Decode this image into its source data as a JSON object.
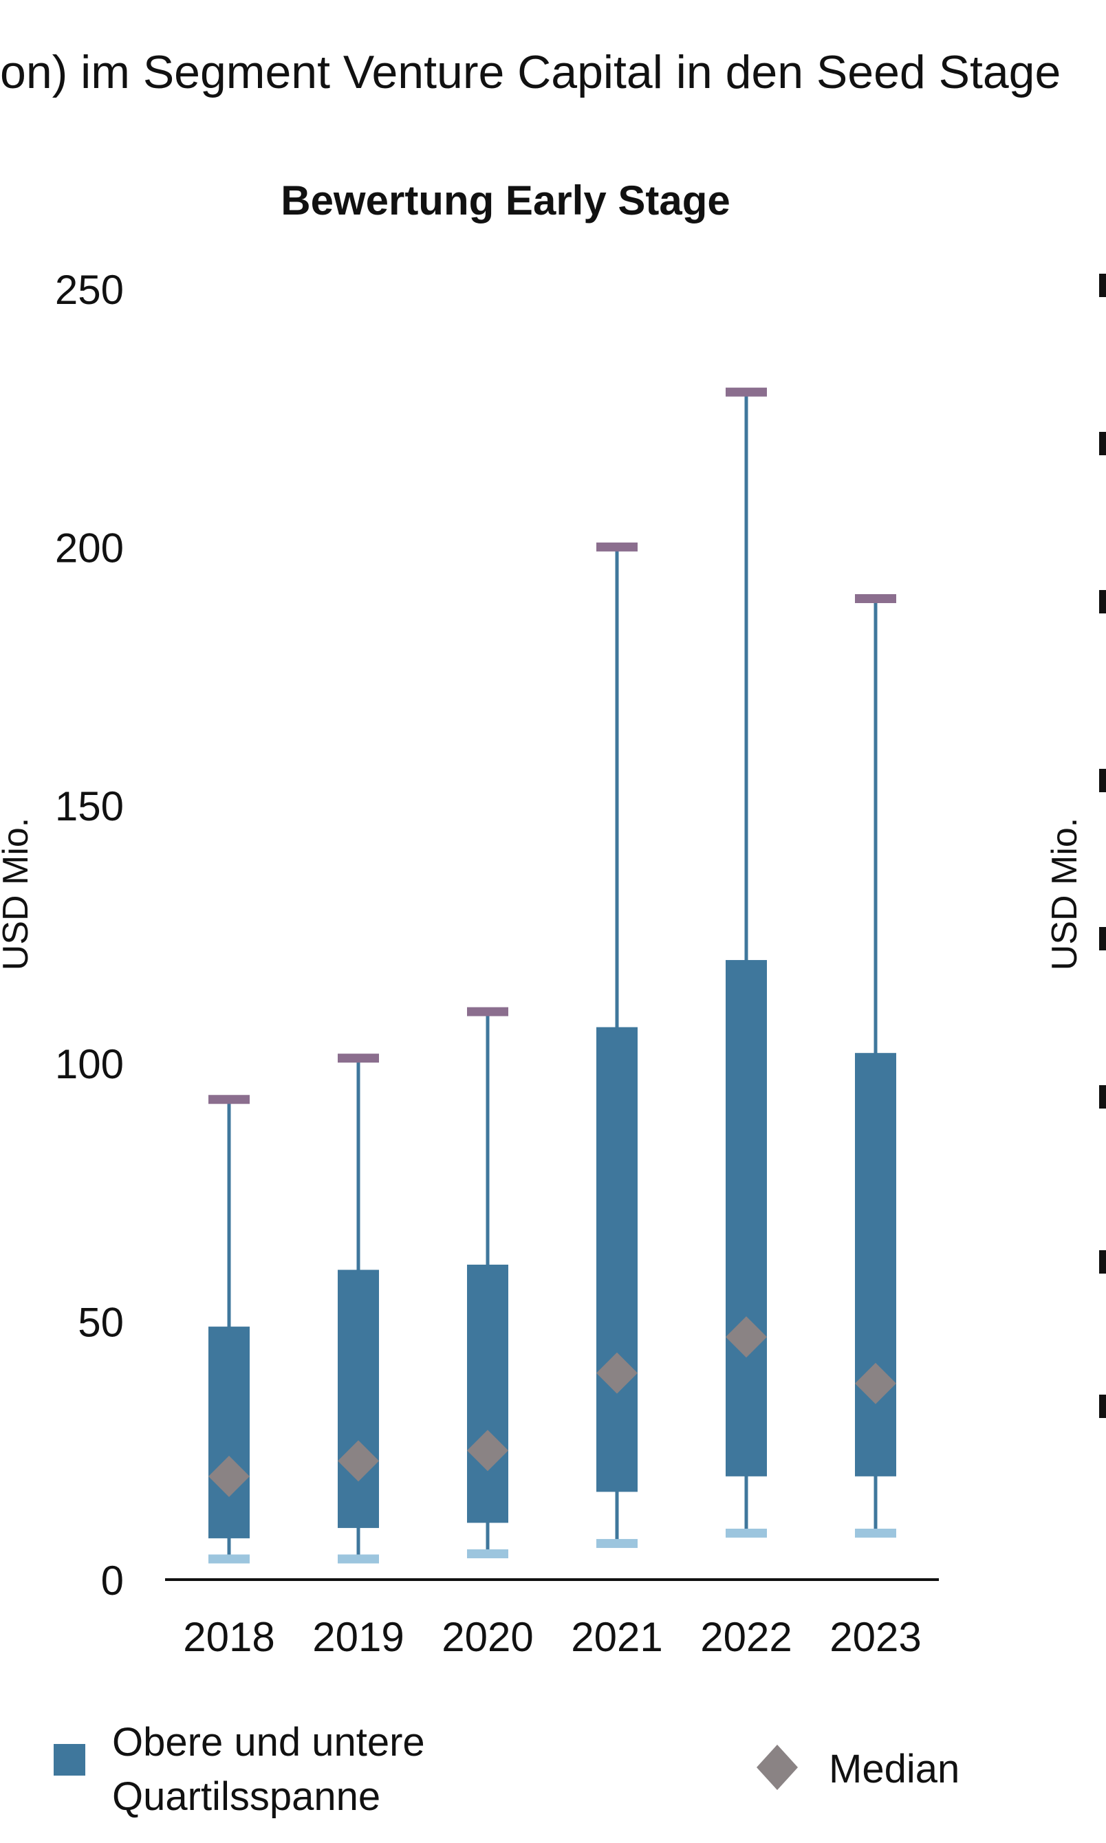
{
  "header": {
    "text": "on) im Segment Venture Capital in den Seed Stage"
  },
  "right_panel": {
    "ylabel": "USD Mio."
  },
  "chart_data": {
    "type": "boxplot",
    "title": "Bewertung Early Stage",
    "ylabel": "USD Mio.",
    "xlabel": "",
    "ylim": [
      0,
      250
    ],
    "yticks": [
      0,
      50,
      100,
      150,
      200,
      250
    ],
    "categories": [
      "2018",
      "2019",
      "2020",
      "2021",
      "2022",
      "2023"
    ],
    "series": [
      {
        "name": "Obere und untere Quartilsspanne",
        "q1": [
          8,
          10,
          11,
          17,
          20,
          20
        ],
        "q3": [
          49,
          60,
          61,
          107,
          120,
          102
        ]
      },
      {
        "name": "Median",
        "values": [
          20,
          23,
          25,
          40,
          47,
          38
        ]
      }
    ],
    "whisker_high": [
      93,
      101,
      110,
      200,
      230,
      190
    ],
    "whisker_low": [
      4,
      4,
      5,
      7,
      9,
      9
    ],
    "colors": {
      "box": "#3f779c",
      "whisker_line": "#3f779c",
      "cap_high": "#8b6e8e",
      "cap_low": "#9cc5de",
      "median": "#8a8384"
    },
    "legend": {
      "box_label_line1": "Obere und untere",
      "box_label_line2": "Quartilsspanne",
      "median_label": "Median"
    }
  }
}
